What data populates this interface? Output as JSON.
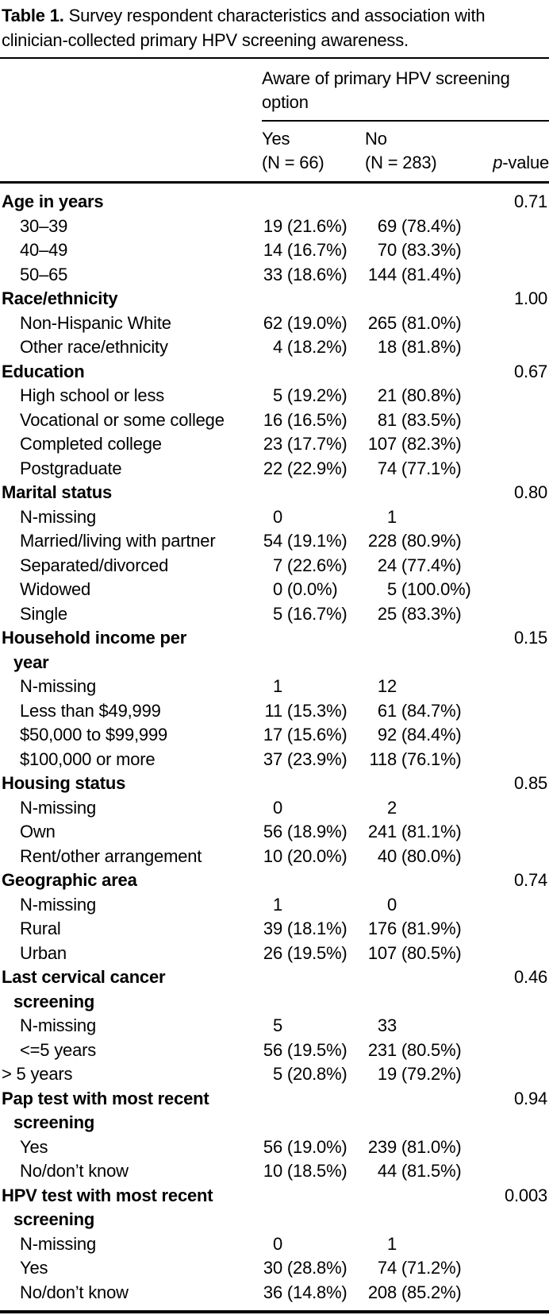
{
  "title": {
    "bold": "Table 1.",
    "rest": " Survey respondent characteristics and association with\nclinician-collected primary HPV screening awareness."
  },
  "header": {
    "spanner": "Aware of primary HPV screening\noption",
    "col_yes": "Yes\n(N = 66)",
    "col_no": "No\n(N = 283)",
    "p_italic": "p",
    "p_rest": "-value"
  },
  "colors": {
    "text": "#000000",
    "background": "#ffffff",
    "rule": "#000000"
  },
  "table": {
    "rows": [
      {
        "label": "Age in years",
        "style": "cat",
        "yes_n": "",
        "yes_pct": "",
        "no_n": "",
        "no_pct": "",
        "p": "0.71"
      },
      {
        "label": "30–39",
        "style": "sub",
        "yes_n": "19",
        "yes_pct": "(21.6%)",
        "no_n": "69",
        "no_pct": "(78.4%)",
        "p": ""
      },
      {
        "label": "40–49",
        "style": "sub",
        "yes_n": "14",
        "yes_pct": "(16.7%)",
        "no_n": "70",
        "no_pct": "(83.3%)",
        "p": ""
      },
      {
        "label": "50–65",
        "style": "sub",
        "yes_n": "33",
        "yes_pct": "(18.6%)",
        "no_n": "144",
        "no_pct": "(81.4%)",
        "p": ""
      },
      {
        "label": "Race/ethnicity",
        "style": "cat",
        "yes_n": "",
        "yes_pct": "",
        "no_n": "",
        "no_pct": "",
        "p": "1.00"
      },
      {
        "label": "Non-Hispanic White",
        "style": "sub",
        "yes_n": "62",
        "yes_pct": "(19.0%)",
        "no_n": "265",
        "no_pct": "(81.0%)",
        "p": ""
      },
      {
        "label": "Other race/ethnicity",
        "style": "sub",
        "yes_n": "4",
        "yes_pct": "(18.2%)",
        "no_n": "18",
        "no_pct": "(81.8%)",
        "p": ""
      },
      {
        "label": "Education",
        "style": "cat",
        "yes_n": "",
        "yes_pct": "",
        "no_n": "",
        "no_pct": "",
        "p": "0.67"
      },
      {
        "label": "High school or less",
        "style": "sub",
        "yes_n": "5",
        "yes_pct": "(19.2%)",
        "no_n": "21",
        "no_pct": "(80.8%)",
        "p": ""
      },
      {
        "label": "Vocational or some college",
        "style": "sub",
        "yes_n": "16",
        "yes_pct": "(16.5%)",
        "no_n": "81",
        "no_pct": "(83.5%)",
        "p": ""
      },
      {
        "label": "Completed college",
        "style": "sub",
        "yes_n": "23",
        "yes_pct": "(17.7%)",
        "no_n": "107",
        "no_pct": "(82.3%)",
        "p": ""
      },
      {
        "label": "Postgraduate",
        "style": "sub",
        "yes_n": "22",
        "yes_pct": "(22.9%)",
        "no_n": "74",
        "no_pct": "(77.1%)",
        "p": ""
      },
      {
        "label": "Marital status",
        "style": "cat",
        "yes_n": "",
        "yes_pct": "",
        "no_n": "",
        "no_pct": "",
        "p": "0.80"
      },
      {
        "label": "N-missing",
        "style": "sub",
        "yes_n": "0",
        "yes_pct": "",
        "no_n": "1",
        "no_pct": "",
        "p": ""
      },
      {
        "label": "Married/living with partner",
        "style": "sub",
        "yes_n": "54",
        "yes_pct": "(19.1%)",
        "no_n": "228",
        "no_pct": "(80.9%)",
        "p": ""
      },
      {
        "label": "Separated/divorced",
        "style": "sub",
        "yes_n": "7",
        "yes_pct": "(22.6%)",
        "no_n": "24",
        "no_pct": "(77.4%)",
        "p": ""
      },
      {
        "label": "Widowed",
        "style": "sub",
        "yes_n": "0",
        "yes_pct": "(0.0%)",
        "no_n": "5",
        "no_pct": "(100.0%)",
        "p": ""
      },
      {
        "label": "Single",
        "style": "sub",
        "yes_n": "5",
        "yes_pct": "(16.7%)",
        "no_n": "25",
        "no_pct": "(83.3%)",
        "p": ""
      },
      {
        "label": "Household income per\nyear",
        "style": "cat",
        "yes_n": "",
        "yes_pct": "",
        "no_n": "",
        "no_pct": "",
        "p": "0.15"
      },
      {
        "label": "N-missing",
        "style": "sub",
        "yes_n": "1",
        "yes_pct": "",
        "no_n": "12",
        "no_pct": "",
        "p": ""
      },
      {
        "label": "Less than $49,999",
        "style": "sub",
        "yes_n": "11",
        "yes_pct": "(15.3%)",
        "no_n": "61",
        "no_pct": "(84.7%)",
        "p": ""
      },
      {
        "label": "$50,000 to $99,999",
        "style": "sub",
        "yes_n": "17",
        "yes_pct": "(15.6%)",
        "no_n": "92",
        "no_pct": "(84.4%)",
        "p": ""
      },
      {
        "label": "$100,000 or more",
        "style": "sub",
        "yes_n": "37",
        "yes_pct": "(23.9%)",
        "no_n": "118",
        "no_pct": "(76.1%)",
        "p": ""
      },
      {
        "label": "Housing status",
        "style": "cat",
        "yes_n": "",
        "yes_pct": "",
        "no_n": "",
        "no_pct": "",
        "p": "0.85"
      },
      {
        "label": "N-missing",
        "style": "sub",
        "yes_n": "0",
        "yes_pct": "",
        "no_n": "2",
        "no_pct": "",
        "p": ""
      },
      {
        "label": "Own",
        "style": "sub",
        "yes_n": "56",
        "yes_pct": "(18.9%)",
        "no_n": "241",
        "no_pct": "(81.1%)",
        "p": ""
      },
      {
        "label": "Rent/other arrangement",
        "style": "sub",
        "yes_n": "10",
        "yes_pct": "(20.0%)",
        "no_n": "40",
        "no_pct": "(80.0%)",
        "p": ""
      },
      {
        "label": "Geographic area",
        "style": "cat",
        "yes_n": "",
        "yes_pct": "",
        "no_n": "",
        "no_pct": "",
        "p": "0.74"
      },
      {
        "label": "N-missing",
        "style": "sub",
        "yes_n": "1",
        "yes_pct": "",
        "no_n": "0",
        "no_pct": "",
        "p": ""
      },
      {
        "label": "Rural",
        "style": "sub",
        "yes_n": "39",
        "yes_pct": "(18.1%)",
        "no_n": "176",
        "no_pct": "(81.9%)",
        "p": ""
      },
      {
        "label": "Urban",
        "style": "sub",
        "yes_n": "26",
        "yes_pct": "(19.5%)",
        "no_n": "107",
        "no_pct": "(80.5%)",
        "p": ""
      },
      {
        "label": "Last cervical cancer\nscreening",
        "style": "cat",
        "yes_n": "",
        "yes_pct": "",
        "no_n": "",
        "no_pct": "",
        "p": "0.46"
      },
      {
        "label": "N-missing",
        "style": "sub",
        "yes_n": "5",
        "yes_pct": "",
        "no_n": "33",
        "no_pct": "",
        "p": ""
      },
      {
        "label": "<=5 years",
        "style": "sub",
        "yes_n": "56",
        "yes_pct": "(19.5%)",
        "no_n": "231",
        "no_pct": "(80.5%)",
        "p": ""
      },
      {
        "label": "> 5 years",
        "style": "flush",
        "yes_n": "5",
        "yes_pct": "(20.8%)",
        "no_n": "19",
        "no_pct": "(79.2%)",
        "p": ""
      },
      {
        "label": "Pap test with most recent\nscreening",
        "style": "cat",
        "yes_n": "",
        "yes_pct": "",
        "no_n": "",
        "no_pct": "",
        "p": "0.94"
      },
      {
        "label": "Yes",
        "style": "sub",
        "yes_n": "56",
        "yes_pct": "(19.0%)",
        "no_n": "239",
        "no_pct": "(81.0%)",
        "p": ""
      },
      {
        "label": "No/don’t know",
        "style": "sub",
        "yes_n": "10",
        "yes_pct": "(18.5%)",
        "no_n": "44",
        "no_pct": "(81.5%)",
        "p": ""
      },
      {
        "label": "HPV test with most recent\nscreening",
        "style": "cat",
        "yes_n": "",
        "yes_pct": "",
        "no_n": "",
        "no_pct": "",
        "p": "0.003"
      },
      {
        "label": "N-missing",
        "style": "sub",
        "yes_n": "0",
        "yes_pct": "",
        "no_n": "1",
        "no_pct": "",
        "p": ""
      },
      {
        "label": "Yes",
        "style": "sub",
        "yes_n": "30",
        "yes_pct": "(28.8%)",
        "no_n": "74",
        "no_pct": "(71.2%)",
        "p": ""
      },
      {
        "label": "No/don’t know",
        "style": "sub",
        "yes_n": "36",
        "yes_pct": "(14.8%)",
        "no_n": "208",
        "no_pct": "(85.2%)",
        "p": ""
      }
    ]
  }
}
